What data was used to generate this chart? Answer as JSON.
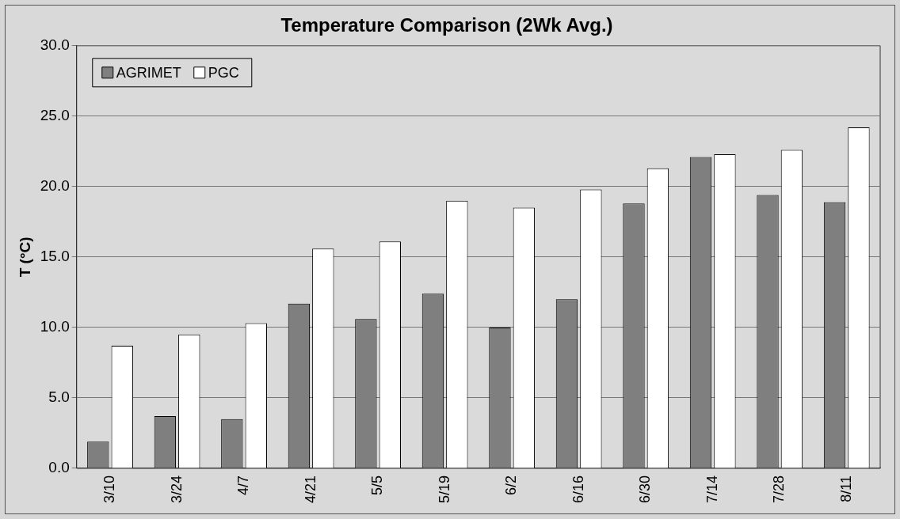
{
  "chart_data": {
    "type": "bar",
    "title": "Temperature Comparison (2Wk Avg.)",
    "ylabel": "T (°C)",
    "categories": [
      "3/10",
      "3/24",
      "4/7",
      "4/21",
      "5/5",
      "5/19",
      "6/2",
      "6/16",
      "6/30",
      "7/14",
      "7/28",
      "8/11"
    ],
    "series": [
      {
        "name": "AGRIMET",
        "color": "#7f7f7f",
        "values": [
          1.9,
          3.7,
          3.5,
          11.7,
          10.6,
          12.4,
          10.0,
          12.0,
          18.8,
          22.1,
          19.4,
          18.9
        ]
      },
      {
        "name": "PGC",
        "color": "#ffffff",
        "values": [
          8.7,
          9.5,
          10.3,
          15.6,
          16.1,
          19.0,
          18.5,
          19.8,
          21.3,
          22.3,
          22.6,
          24.2
        ]
      }
    ],
    "ylim": [
      0,
      30
    ],
    "yticks": [
      {
        "value": 0,
        "label": "0.0"
      },
      {
        "value": 5,
        "label": "5.0"
      },
      {
        "value": 10,
        "label": "10.0"
      },
      {
        "value": 15,
        "label": "15.0"
      },
      {
        "value": 20,
        "label": "20.0"
      },
      {
        "value": 25,
        "label": "25.0"
      },
      {
        "value": 30,
        "label": "30.0"
      }
    ],
    "grid": "y",
    "legend": "top left"
  }
}
